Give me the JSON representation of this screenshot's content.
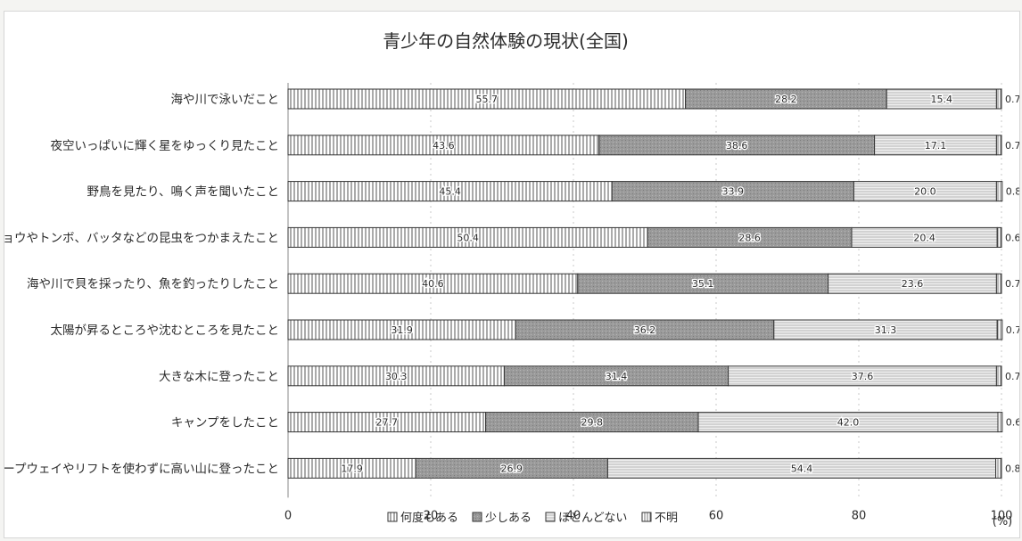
{
  "chart_data": {
    "type": "bar",
    "orientation": "horizontal",
    "stacked": true,
    "title": "青少年の自然体験の現状(全国)",
    "xlabel": "",
    "unit": "(%)",
    "xlim": [
      0,
      100
    ],
    "xticks": [
      "0",
      "20",
      "40",
      "60",
      "80",
      "100"
    ],
    "categories": [
      "海や川で泳いだこと",
      "夜空いっぱいに輝く星をゆっくり見たこと",
      "野鳥を見たり、鳴く声を聞いたこと",
      "チョウやトンボ、バッタなどの昆虫をつかまえたこと",
      "海や川で貝を採ったり、魚を釣ったりしたこと",
      "太陽が昇るところや沈むところを見たこと",
      "大きな木に登ったこと",
      "キャンプをしたこと",
      "ロープウェイやリフトを使わずに高い山に登ったこと"
    ],
    "series": [
      {
        "name": "何度もある",
        "values": [
          55.7,
          43.6,
          45.4,
          50.4,
          40.6,
          31.9,
          30.3,
          27.7,
          17.9
        ],
        "labels": [
          "55.7",
          "43.6",
          "45.4",
          "50.4",
          "40.6",
          "31.9",
          "30.3",
          "27.7",
          "17.9"
        ]
      },
      {
        "name": "少しある",
        "values": [
          28.2,
          38.6,
          33.9,
          28.6,
          35.1,
          36.2,
          31.4,
          29.8,
          26.9
        ],
        "labels": [
          "28.2",
          "38.6",
          "33.9",
          "28.6",
          "35.1",
          "36.2",
          "31.4",
          "29.8",
          "26.9"
        ]
      },
      {
        "name": "ほとんどない",
        "values": [
          15.4,
          17.1,
          20.0,
          20.4,
          23.6,
          31.3,
          37.6,
          42.0,
          54.4
        ],
        "labels": [
          "15.4",
          "17.1",
          "20.0",
          "20.4",
          "23.6",
          "31.3",
          "37.6",
          "42.0",
          "54.4"
        ]
      },
      {
        "name": "不明",
        "values": [
          0.7,
          0.7,
          0.8,
          0.6,
          0.7,
          0.7,
          0.7,
          0.6,
          0.8
        ],
        "labels": [
          "0.7",
          "0.7",
          "0.8",
          "0.6",
          "0.7",
          "0.7",
          "0.7",
          "0.6",
          "0.8"
        ]
      }
    ],
    "legend": [
      "何度もある",
      "少しある",
      "ほとんどない",
      "不明"
    ],
    "legend_position": "bottom",
    "grid": true,
    "colors": {
      "series_fill": [
        "#ffffff",
        "#9a9a9a",
        "#e6e6e6",
        "#ffffff"
      ],
      "pattern_line": "#555555",
      "bar_outline": "#333333",
      "text": "#2b2b2b",
      "gridline": "#c8c8c8"
    }
  }
}
